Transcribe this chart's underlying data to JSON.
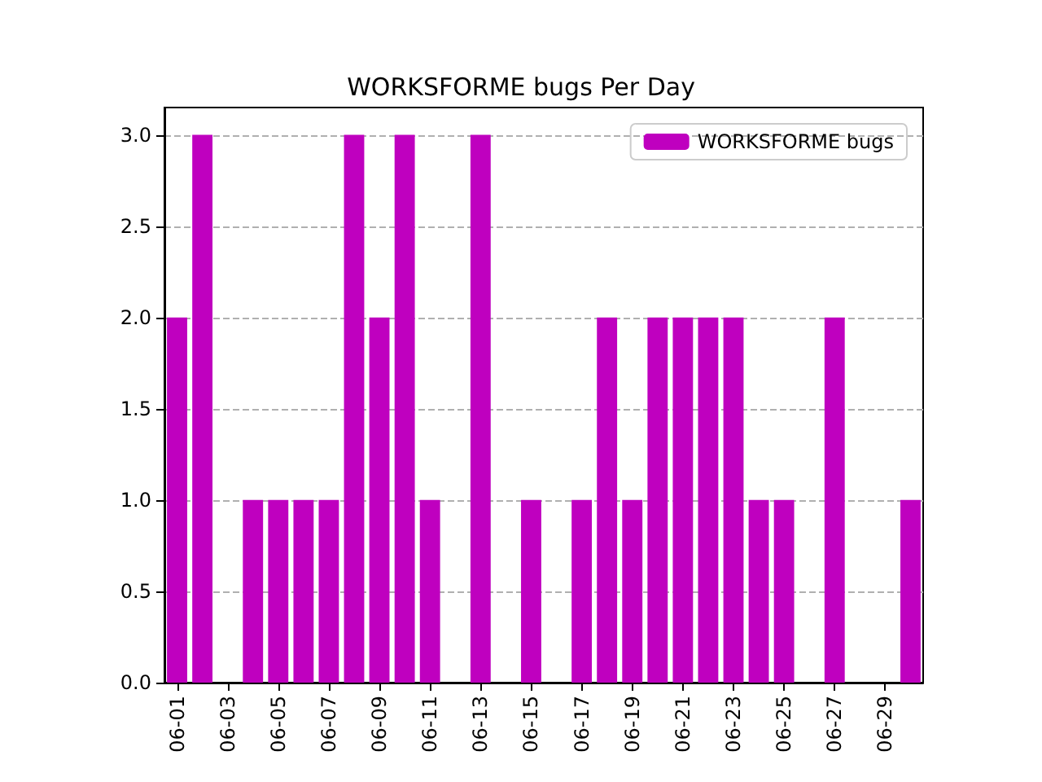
{
  "chart_data": {
    "type": "bar",
    "title": "WORKSFORME bugs Per Day",
    "categories": [
      "06-01",
      null,
      "06-03",
      null,
      "06-05",
      null,
      "06-07",
      null,
      "06-09",
      null,
      "06-11",
      null,
      "06-13",
      null,
      "06-15",
      null,
      "06-17",
      null,
      "06-19",
      null,
      "06-21",
      null,
      "06-23",
      null,
      "06-25",
      null,
      "06-27",
      null,
      "06-29",
      null
    ],
    "series": [
      {
        "name": "WORKSFORME bugs",
        "color": "#bf00bf",
        "values": [
          2,
          3,
          0,
          1,
          1,
          1,
          1,
          3,
          2,
          3,
          1,
          0,
          3,
          0,
          1,
          0,
          1,
          2,
          1,
          2,
          2,
          2,
          2,
          1,
          1,
          0,
          2,
          0,
          0,
          1
        ]
      }
    ],
    "ylim": [
      0,
      3.15
    ],
    "yticks": [
      {
        "value": 0,
        "label": "0.0"
      },
      {
        "value": 0.5,
        "label": "0.5"
      },
      {
        "value": 1,
        "label": "1.0"
      },
      {
        "value": 1.5,
        "label": "1.5"
      },
      {
        "value": 2,
        "label": "2.0"
      },
      {
        "value": 2.5,
        "label": "2.5"
      },
      {
        "value": 3,
        "label": "3.0"
      }
    ],
    "grid": "y",
    "legend": "top right"
  }
}
